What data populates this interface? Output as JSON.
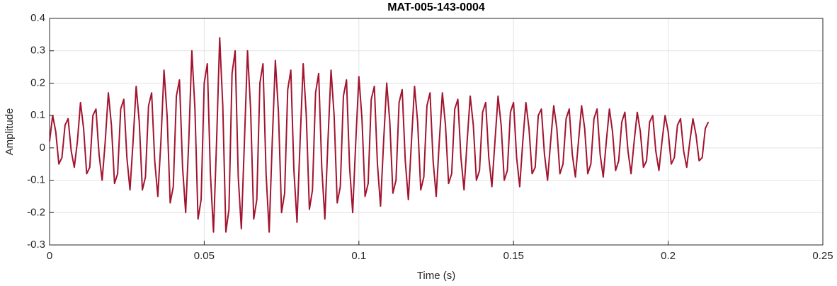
{
  "chart_data": {
    "type": "line",
    "title": "MAT-005-143-0004",
    "x_label": "Time (s)",
    "y_label": "Amplitude",
    "xlim": [
      0,
      0.25
    ],
    "xticks": [
      0,
      0.05,
      0.1,
      0.15,
      0.2,
      0.25
    ],
    "ylim": [
      -0.3,
      0.4
    ],
    "yticks": [
      -0.3,
      -0.2,
      -0.1,
      0,
      0.1,
      0.2,
      0.3,
      0.4
    ],
    "grid": true,
    "x": [
      0,
      0.001,
      0.002,
      0.003,
      0.004,
      0.005,
      0.006,
      0.007,
      0.008,
      0.009,
      0.01,
      0.011,
      0.012,
      0.013,
      0.014,
      0.015,
      0.016,
      0.017,
      0.018,
      0.019,
      0.02,
      0.021,
      0.022,
      0.023,
      0.024,
      0.025,
      0.026,
      0.027,
      0.028,
      0.029,
      0.03,
      0.031,
      0.032,
      0.033,
      0.034,
      0.035,
      0.036,
      0.037,
      0.038,
      0.039,
      0.04,
      0.041,
      0.042,
      0.043,
      0.044,
      0.045,
      0.046,
      0.047,
      0.048,
      0.049,
      0.05,
      0.051,
      0.052,
      0.053,
      0.054,
      0.055,
      0.056,
      0.057,
      0.058,
      0.059,
      0.06,
      0.061,
      0.062,
      0.063,
      0.064,
      0.065,
      0.066,
      0.067,
      0.068,
      0.069,
      0.07,
      0.071,
      0.072,
      0.073,
      0.074,
      0.075,
      0.076,
      0.077,
      0.078,
      0.079,
      0.08,
      0.081,
      0.082,
      0.083,
      0.084,
      0.085,
      0.086,
      0.087,
      0.088,
      0.089,
      0.09,
      0.091,
      0.092,
      0.093,
      0.094,
      0.095,
      0.096,
      0.097,
      0.098,
      0.099,
      0.1,
      0.101,
      0.102,
      0.103,
      0.104,
      0.105,
      0.106,
      0.107,
      0.108,
      0.109,
      0.11,
      0.111,
      0.112,
      0.113,
      0.114,
      0.115,
      0.116,
      0.117,
      0.118,
      0.119,
      0.12,
      0.121,
      0.122,
      0.123,
      0.124,
      0.125,
      0.126,
      0.127,
      0.128,
      0.129,
      0.13,
      0.131,
      0.132,
      0.133,
      0.134,
      0.135,
      0.136,
      0.137,
      0.138,
      0.139,
      0.14,
      0.141,
      0.142,
      0.143,
      0.144,
      0.145,
      0.146,
      0.147,
      0.148,
      0.149,
      0.15,
      0.151,
      0.152,
      0.153,
      0.154,
      0.155,
      0.156,
      0.157,
      0.158,
      0.159,
      0.16,
      0.161,
      0.162,
      0.163,
      0.164,
      0.165,
      0.166,
      0.167,
      0.168,
      0.169,
      0.17,
      0.171,
      0.172,
      0.173,
      0.174,
      0.175,
      0.176,
      0.177,
      0.178,
      0.179,
      0.18,
      0.181,
      0.182,
      0.183,
      0.184,
      0.185,
      0.186,
      0.187,
      0.188,
      0.189,
      0.19,
      0.191,
      0.192,
      0.193,
      0.194,
      0.195,
      0.196,
      0.197,
      0.198,
      0.199,
      0.2,
      0.201,
      0.202,
      0.203,
      0.204,
      0.205,
      0.206,
      0.207,
      0.208,
      0.209,
      0.21,
      0.211,
      0.212,
      0.213
    ],
    "series": [
      {
        "color": "#a2142f",
        "values": [
          0.02,
          0.1,
          0.05,
          -0.05,
          -0.03,
          0.07,
          0.09,
          -0.01,
          -0.06,
          0.02,
          0.14,
          0.06,
          -0.08,
          -0.06,
          0.1,
          0.12,
          -0.02,
          -0.1,
          0.02,
          0.17,
          0.07,
          -0.11,
          -0.08,
          0.12,
          0.15,
          -0.03,
          -0.13,
          0.02,
          0.19,
          0.08,
          -0.13,
          -0.09,
          0.13,
          0.17,
          -0.04,
          -0.15,
          0.02,
          0.24,
          0.1,
          -0.17,
          -0.12,
          0.16,
          0.21,
          -0.06,
          -0.2,
          0.02,
          0.3,
          0.12,
          -0.22,
          -0.16,
          0.2,
          0.26,
          -0.08,
          -0.26,
          0.02,
          0.34,
          0.13,
          -0.26,
          -0.19,
          0.23,
          0.3,
          -0.09,
          -0.25,
          0.02,
          0.3,
          0.12,
          -0.22,
          -0.16,
          0.2,
          0.26,
          -0.08,
          -0.26,
          0.02,
          0.27,
          0.11,
          -0.2,
          -0.14,
          0.18,
          0.24,
          -0.07,
          -0.23,
          0.02,
          0.26,
          0.1,
          -0.19,
          -0.13,
          0.17,
          0.23,
          -0.06,
          -0.22,
          0.02,
          0.24,
          0.1,
          -0.17,
          -0.12,
          0.16,
          0.21,
          -0.06,
          -0.2,
          0.02,
          0.22,
          0.09,
          -0.15,
          -0.11,
          0.15,
          0.19,
          -0.05,
          -0.18,
          0.02,
          0.2,
          0.08,
          -0.14,
          -0.1,
          0.14,
          0.18,
          -0.04,
          -0.16,
          0.02,
          0.19,
          0.08,
          -0.13,
          -0.09,
          0.13,
          0.17,
          -0.04,
          -0.15,
          0.02,
          0.17,
          0.07,
          -0.11,
          -0.08,
          0.12,
          0.15,
          -0.03,
          -0.13,
          0.02,
          0.16,
          0.07,
          -0.1,
          -0.07,
          0.11,
          0.14,
          -0.03,
          -0.12,
          0.02,
          0.16,
          0.07,
          -0.1,
          -0.07,
          0.11,
          0.14,
          -0.03,
          -0.12,
          0.02,
          0.14,
          0.06,
          -0.08,
          -0.06,
          0.1,
          0.12,
          -0.02,
          -0.1,
          0.02,
          0.13,
          0.06,
          -0.08,
          -0.05,
          0.09,
          0.12,
          -0.02,
          -0.09,
          0.02,
          0.13,
          0.06,
          -0.08,
          -0.05,
          0.09,
          0.12,
          -0.02,
          -0.09,
          0.02,
          0.12,
          0.05,
          -0.07,
          -0.04,
          0.08,
          0.11,
          -0.01,
          -0.08,
          0.02,
          0.11,
          0.05,
          -0.06,
          -0.04,
          0.08,
          0.1,
          -0.01,
          -0.07,
          0.02,
          0.1,
          0.05,
          -0.05,
          -0.03,
          0.07,
          0.09,
          -0.01,
          -0.06,
          0.02,
          0.09,
          0.04,
          -0.04,
          -0.03,
          0.06,
          0.08
        ]
      }
    ]
  }
}
